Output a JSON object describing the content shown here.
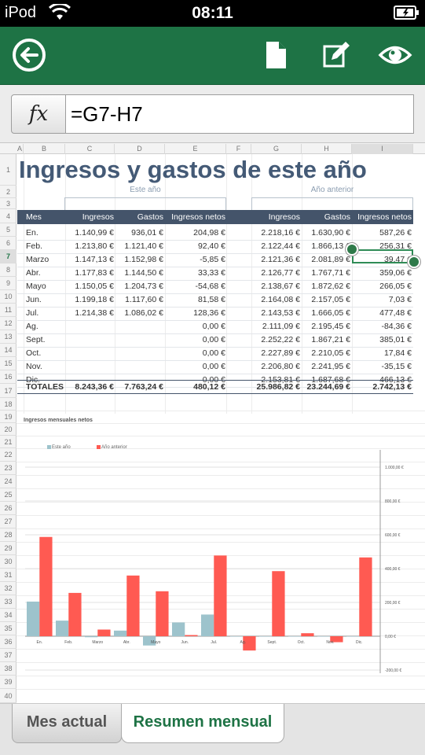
{
  "status": {
    "carrier": "iPod",
    "time": "08:11"
  },
  "toolbar": {
    "back": "back-icon",
    "document": "document-icon",
    "edit": "edit-icon",
    "view": "eye-icon"
  },
  "formula": {
    "fx_label": "fx",
    "value": "=G7-H7"
  },
  "columns": [
    "A",
    "B",
    "C",
    "D",
    "E",
    "F",
    "G",
    "H",
    "I"
  ],
  "rows": [
    "1",
    "2",
    "3",
    "4",
    "5",
    "6",
    "7",
    "8",
    "9",
    "10",
    "11",
    "12",
    "13",
    "14",
    "15",
    "16",
    "17",
    "18",
    "19",
    "20",
    "21",
    "22",
    "23",
    "24",
    "25",
    "26",
    "27",
    "28",
    "29",
    "30",
    "31",
    "32",
    "33",
    "34",
    "35",
    "36",
    "37",
    "38",
    "39",
    "40"
  ],
  "sheet": {
    "title": "Ingresos y gastos de este año",
    "this_year": "Este año",
    "last_year": "Año anterior",
    "headers": [
      "Mes",
      "Ingresos",
      "Gastos",
      "Ingresos netos",
      "Ingresos",
      "Gastos",
      "Ingresos netos"
    ],
    "data": [
      [
        "En.",
        "1.140,99 €",
        "936,01 €",
        "204,98 €",
        "2.218,16 €",
        "1.630,90 €",
        "587,26 €"
      ],
      [
        "Feb.",
        "1.213,80 €",
        "1.121,40 €",
        "92,40 €",
        "2.122,44 €",
        "1.866,13 €",
        "256,31 €"
      ],
      [
        "Marzo",
        "1.147,13 €",
        "1.152,98 €",
        "-5,85 €",
        "2.121,36 €",
        "2.081,89 €",
        "39,47 €"
      ],
      [
        "Abr.",
        "1.177,83 €",
        "1.144,50 €",
        "33,33 €",
        "2.126,77 €",
        "1.767,71 €",
        "359,06 €"
      ],
      [
        "Mayo",
        "1.150,05 €",
        "1.204,73 €",
        "-54,68 €",
        "2.138,67 €",
        "1.872,62 €",
        "266,05 €"
      ],
      [
        "Jun.",
        "1.199,18 €",
        "1.117,60 €",
        "81,58 €",
        "2.164,08 €",
        "2.157,05 €",
        "7,03 €"
      ],
      [
        "Jul.",
        "1.214,38 €",
        "1.086,02 €",
        "128,36 €",
        "2.143,53 €",
        "1.666,05 €",
        "477,48 €"
      ],
      [
        "Ag.",
        "",
        "",
        "0,00 €",
        "2.111,09 €",
        "2.195,45 €",
        "-84,36 €"
      ],
      [
        "Sept.",
        "",
        "",
        "0,00 €",
        "2.252,22 €",
        "1.867,21 €",
        "385,01 €"
      ],
      [
        "Oct.",
        "",
        "",
        "0,00 €",
        "2.227,89 €",
        "2.210,05 €",
        "17,84 €"
      ],
      [
        "Nov.",
        "",
        "",
        "0,00 €",
        "2.206,80 €",
        "2.241,95 €",
        "-35,15 €"
      ],
      [
        "Dic.",
        "",
        "",
        "0,00 €",
        "2.153,81 €",
        "1.687,68 €",
        "466,13 €"
      ]
    ],
    "totals": [
      "TOTALES",
      "8.243,36 €",
      "7.763,24 €",
      "480,12 €",
      "25.986,82 €",
      "23.244,69 €",
      "2.742,13 €"
    ]
  },
  "chart_data": {
    "type": "bar",
    "title": "Ingresos mensuales netos",
    "categories": [
      "En.",
      "Feb.",
      "Marzo",
      "Abr.",
      "Mayo",
      "Jun.",
      "Jul.",
      "Ag.",
      "Sept.",
      "Oct.",
      "Nov.",
      "Dic."
    ],
    "series": [
      {
        "name": "Este año",
        "color": "#9dc3cc",
        "values": [
          204.98,
          92.4,
          -5.85,
          33.33,
          -54.68,
          81.58,
          128.36,
          0,
          0,
          0,
          0,
          0
        ]
      },
      {
        "name": "Año anterior",
        "color": "#ff5a52",
        "values": [
          587.26,
          256.31,
          39.47,
          359.06,
          266.05,
          7.03,
          477.48,
          -84.36,
          385.01,
          17.84,
          -35.15,
          466.13
        ]
      }
    ],
    "ylim": [
      -200,
      1000
    ],
    "yticks": [
      "1.000,00 €",
      "800,00 €",
      "600,00 €",
      "400,00 €",
      "200,00 €",
      "0,00 €",
      "-200,00 €"
    ],
    "grid": true,
    "legend": "top-left"
  },
  "tabs": [
    {
      "label": "Mes actual"
    },
    {
      "label": "Resumen mensual"
    }
  ]
}
